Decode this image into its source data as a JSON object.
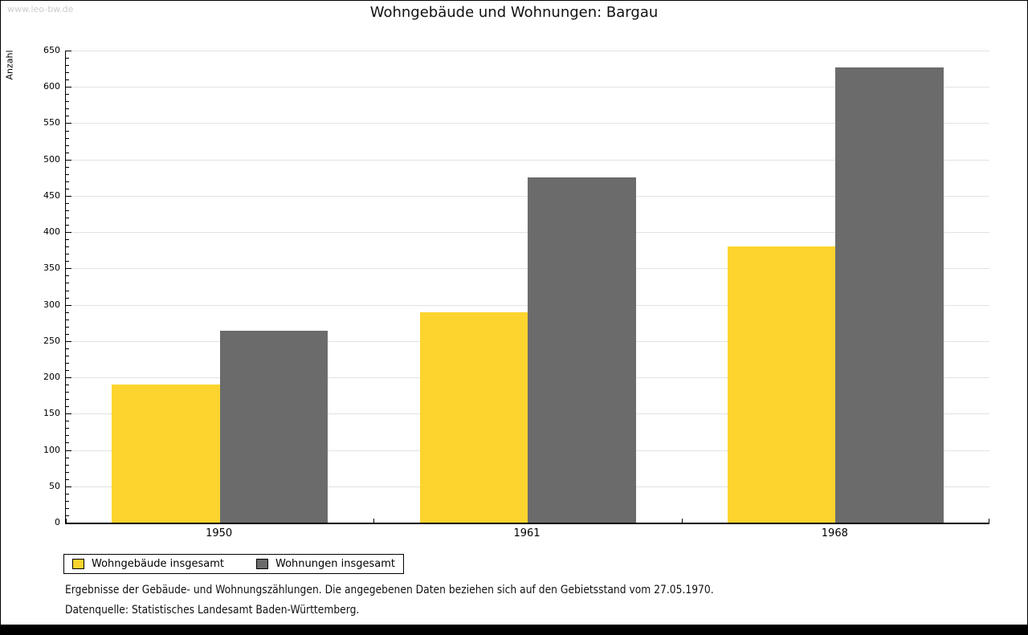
{
  "watermark": "www.leo-bw.de",
  "title": "Wohngebäude und Wohnungen: Bargau",
  "chart_data": {
    "type": "bar",
    "title": "Wohngebäude und Wohnungen: Bargau",
    "ylabel": "Anzahl",
    "xlabel": "",
    "categories": [
      "1950",
      "1961",
      "1968"
    ],
    "series": [
      {
        "name": "Wohngebäude insgesamt",
        "color": "#fdd42e",
        "values": [
          190,
          290,
          380
        ]
      },
      {
        "name": "Wohnungen insgesamt",
        "color": "#6b6b6b",
        "values": [
          264,
          475,
          627
        ]
      }
    ],
    "ylim": [
      0,
      650
    ],
    "y_major_step": 50,
    "y_minor_step": 10,
    "grid": true,
    "grid_color": "#e2e2e2",
    "legend_position": "bottom-left"
  },
  "footer": {
    "line1": "Ergebnisse der Gebäude- und Wohnungszählungen. Die angegebenen Daten beziehen sich auf den Gebietsstand vom 27.05.1970.",
    "line2": "Datenquelle: Statistisches Landesamt Baden-Württemberg."
  }
}
